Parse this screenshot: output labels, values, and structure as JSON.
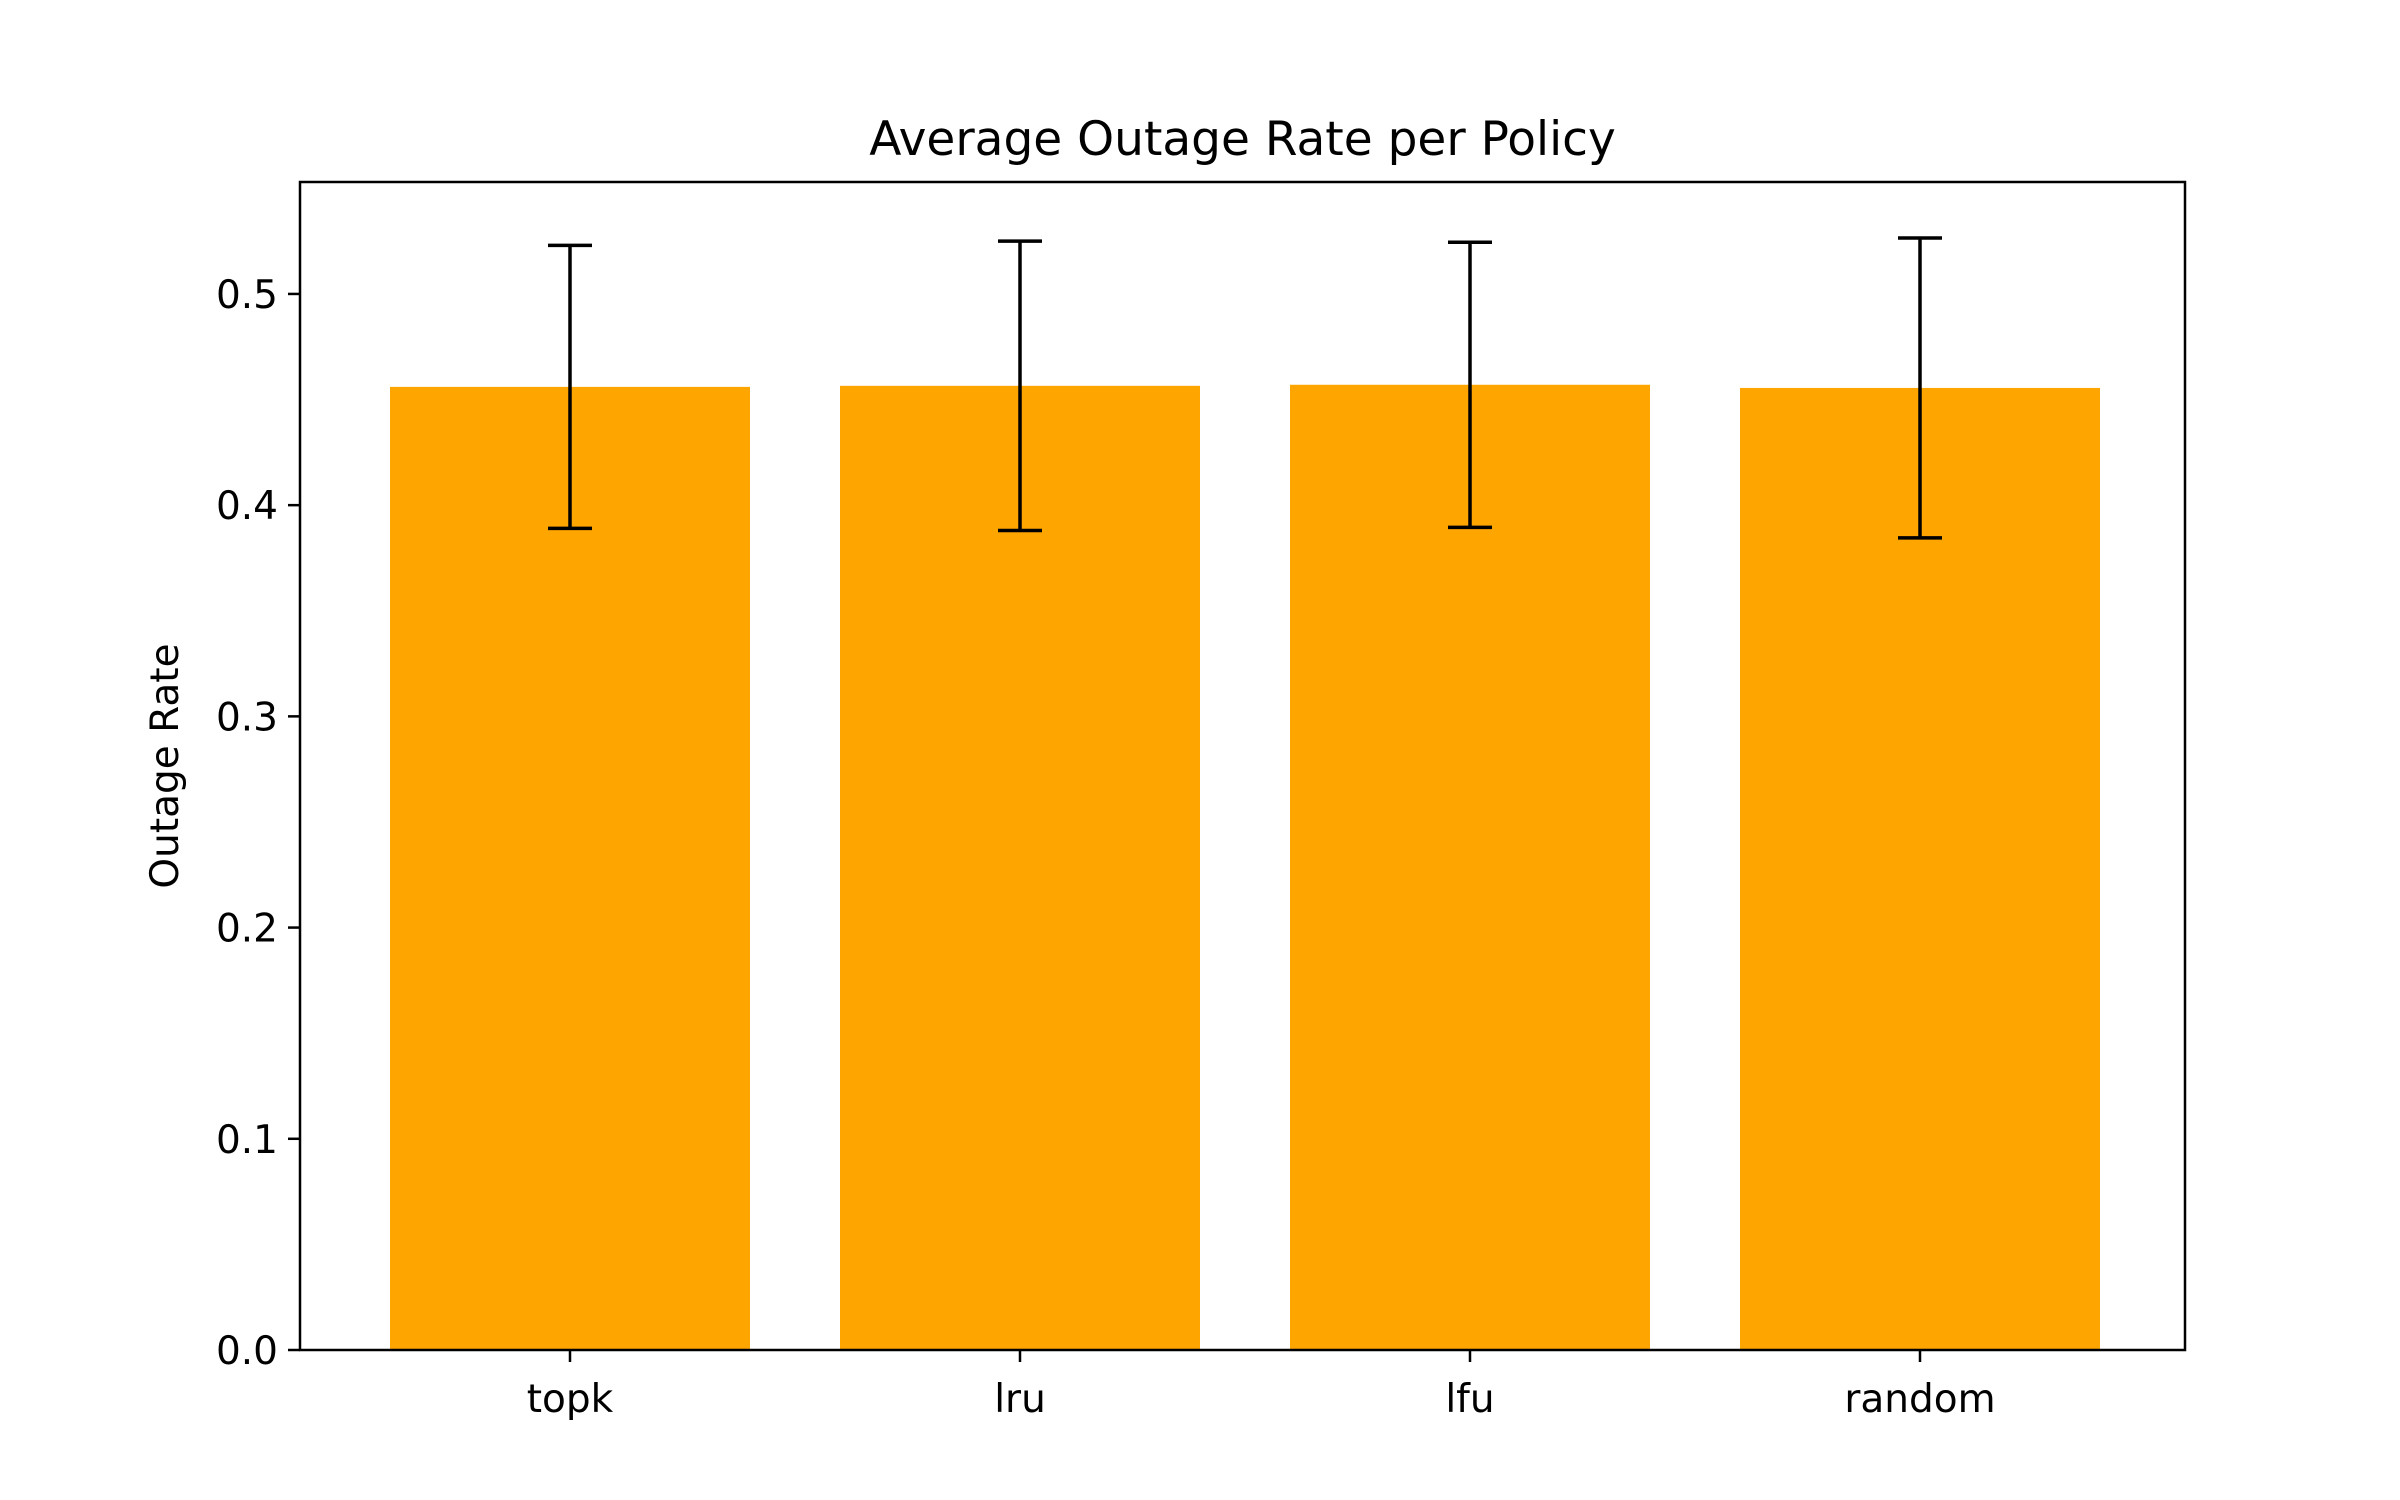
{
  "chart_data": {
    "type": "bar",
    "title": "Average Outage Rate per Policy",
    "xlabel": "",
    "ylabel": "Outage Rate",
    "categories": [
      "topk",
      "lru",
      "lfu",
      "random"
    ],
    "values": [
      0.456,
      0.4565,
      0.457,
      0.4555
    ],
    "error": [
      0.067,
      0.0685,
      0.0675,
      0.071
    ],
    "ylim": [
      0,
      0.553
    ],
    "yticks": [
      0.0,
      0.1,
      0.2,
      0.3,
      0.4,
      0.5
    ],
    "ytick_labels": [
      "0.0",
      "0.1",
      "0.2",
      "0.3",
      "0.4",
      "0.5"
    ],
    "bar_color": "#ffa500",
    "error_color": "#000000",
    "grid": false,
    "legend": "none"
  }
}
